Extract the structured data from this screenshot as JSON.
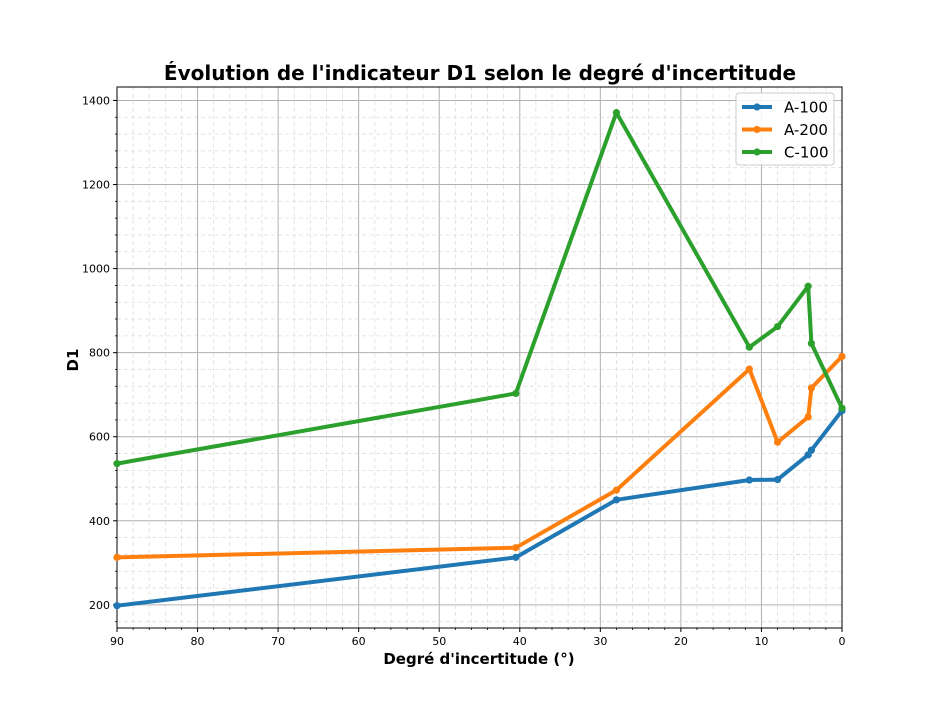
{
  "chart_data": {
    "type": "line",
    "title": "Évolution de l'indicateur D1 selon le degré d'incertitude",
    "xlabel": "Degré d'incertitude (°)",
    "ylabel": "D1",
    "xlim": [
      90,
      0
    ],
    "ylim": [
      145,
      1432
    ],
    "x_ticks": [
      90,
      80,
      70,
      60,
      50,
      40,
      30,
      20,
      10,
      0
    ],
    "y_ticks": [
      200,
      400,
      600,
      800,
      1000,
      1200,
      1400
    ],
    "grid": true,
    "minor_grid": true,
    "legend_position": "top-right",
    "series": [
      {
        "name": "A-100",
        "color": "#1f77b4",
        "x": [
          90,
          40.5,
          28,
          11.5,
          8,
          4.2,
          3.8,
          0
        ],
        "y": [
          198,
          313,
          450,
          497,
          498,
          557,
          568,
          662
        ]
      },
      {
        "name": "A-200",
        "color": "#ff7f0e",
        "x": [
          90,
          40.5,
          28,
          11.5,
          8,
          4.2,
          3.8,
          0
        ],
        "y": [
          313,
          336,
          473,
          761,
          587,
          647,
          716,
          791
        ]
      },
      {
        "name": "C-100",
        "color": "#2ca02c",
        "x": [
          90,
          40.5,
          28,
          11.5,
          8,
          4.2,
          3.8,
          0
        ],
        "y": [
          536,
          703,
          1371,
          813,
          862,
          958,
          822,
          668
        ]
      }
    ]
  }
}
